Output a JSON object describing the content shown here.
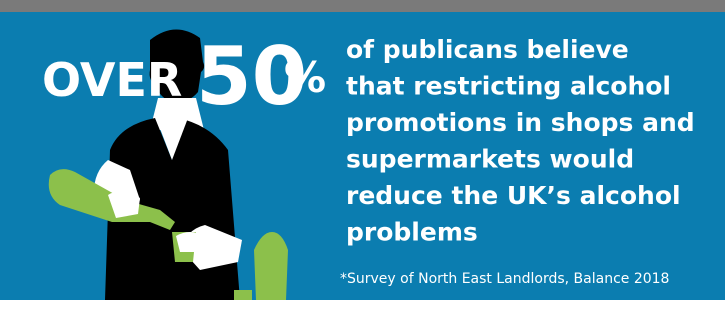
{
  "headline": {
    "prefix": "OVER",
    "figure": "50",
    "unit": "%"
  },
  "statement": {
    "lines": [
      "of publicans believe",
      "that restricting alcohol",
      "promotions in shops and",
      "supermarkets would",
      "reduce the UK’s alcohol",
      "problems"
    ]
  },
  "footnote": "*Survey of North East Landlords, Balance 2018"
}
